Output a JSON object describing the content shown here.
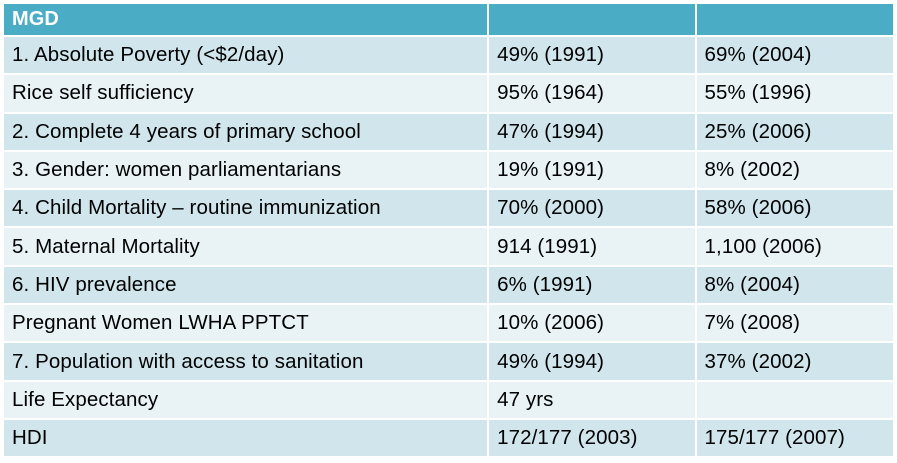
{
  "table": {
    "headers": [
      "MGD",
      "",
      ""
    ],
    "rows": [
      [
        "1. Absolute Poverty (<$2/day)",
        "49% (1991)",
        "69% (2004)"
      ],
      [
        "Rice self sufficiency",
        "95% (1964)",
        "55% (1996)"
      ],
      [
        "2. Complete 4 years of primary school",
        "47% (1994)",
        "25% (2006)"
      ],
      [
        "3. Gender: women parliamentarians",
        "19% (1991)",
        "8% (2002)"
      ],
      [
        "4. Child Mortality – routine immunization",
        "70% (2000)",
        "58% (2006)"
      ],
      [
        "5. Maternal Mortality",
        "914 (1991)",
        "1,100 (2006)"
      ],
      [
        "6. HIV prevalence",
        "6% (1991)",
        "8% (2004)"
      ],
      [
        "Pregnant Women LWHA PPTCT",
        "10% (2006)",
        "7% (2008)"
      ],
      [
        "7. Population with access to sanitation",
        "49% (1994)",
        "37% (2002)"
      ],
      [
        "Life Expectancy",
        "47 yrs",
        ""
      ],
      [
        "HDI",
        "172/177 (2003)",
        "175/177 (2007)"
      ]
    ],
    "colors": {
      "header_bg": "#4bacc6",
      "header_text": "#ffffff",
      "row_band_dark": "#d0e6ec",
      "row_band_light": "#e9f3f6"
    }
  }
}
